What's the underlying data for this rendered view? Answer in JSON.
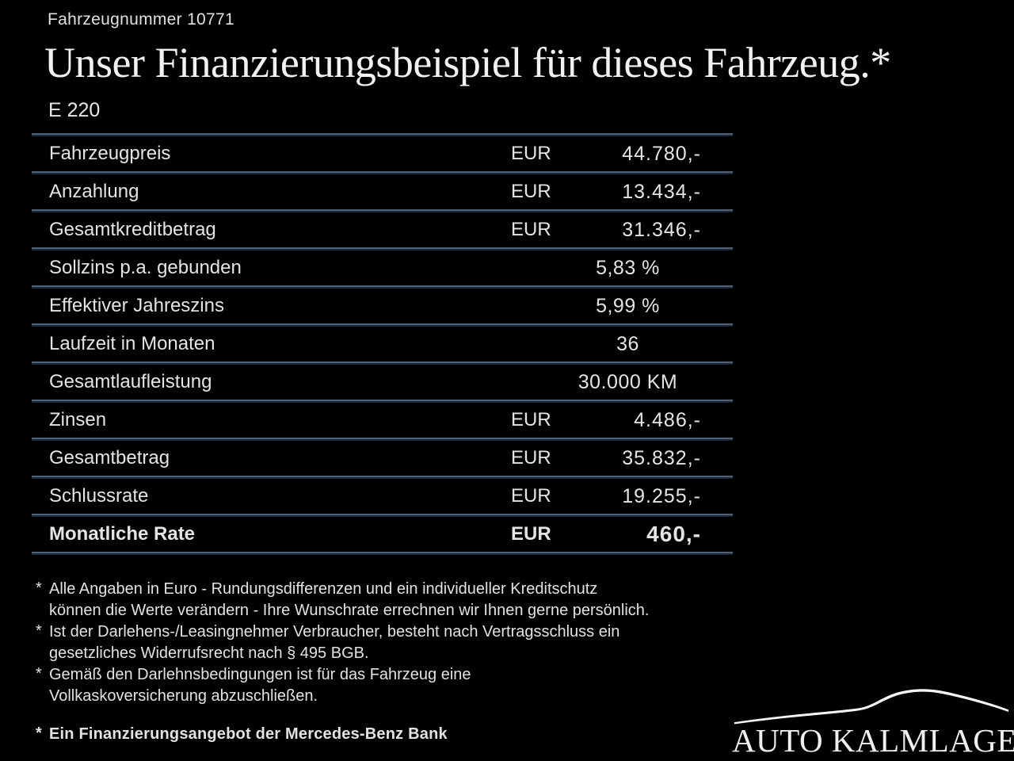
{
  "header": {
    "vehicle_number": "Fahrzeugnummer 10771",
    "title": "Unser Finanzierungsbeispiel für dieses Fahrzeug.*",
    "model": "E 220"
  },
  "table": {
    "rows": [
      {
        "label": "Fahrzeugpreis",
        "currency": "EUR",
        "value": "44.780,-",
        "bold": false
      },
      {
        "label": "Anzahlung",
        "currency": "EUR",
        "value": "13.434,-",
        "bold": false
      },
      {
        "label": "Gesamtkreditbetrag",
        "currency": "EUR",
        "value": "31.346,-",
        "bold": false
      },
      {
        "label": "Sollzins p.a. gebunden",
        "currency": "",
        "value": "5,83 %",
        "bold": false
      },
      {
        "label": "Effektiver Jahreszins",
        "currency": "",
        "value": "5,99 %",
        "bold": false
      },
      {
        "label": "Laufzeit in Monaten",
        "currency": "",
        "value": "36",
        "bold": false
      },
      {
        "label": "Gesamtlaufleistung",
        "currency": "",
        "value": "30.000 KM",
        "bold": false
      },
      {
        "label": "Zinsen",
        "currency": "EUR",
        "value": "4.486,-",
        "bold": false
      },
      {
        "label": "Gesamtbetrag",
        "currency": "EUR",
        "value": "35.832,-",
        "bold": false
      },
      {
        "label": "Schlussrate",
        "currency": "EUR",
        "value": "19.255,-",
        "bold": false
      },
      {
        "label": "Monatliche Rate",
        "currency": "EUR",
        "value": "460,-",
        "bold": true
      }
    ]
  },
  "footnotes": {
    "items": [
      {
        "marker": "*",
        "lines": [
          "Alle Angaben in Euro - Rundungsdifferenzen und ein individueller Kreditschutz",
          "können die Werte verändern - Ihre Wunschrate errechnen wir Ihnen gerne persönlich."
        ],
        "bold": false
      },
      {
        "marker": "*",
        "lines": [
          "Ist der Darlehens-/Leasingnehmer Verbraucher, besteht nach Vertragsschluss ein",
          "gesetzliches Widerrufsrecht nach § 495 BGB."
        ],
        "bold": false
      },
      {
        "marker": "*",
        "lines": [
          "Gemäß den Darlehnsbedingungen ist für das Fahrzeug eine",
          "Vollkaskoversicherung abzuschließen."
        ],
        "bold": false
      },
      {
        "marker": "*",
        "lines": [
          "Ein Finanzierungsangebot der Mercedes-Benz Bank"
        ],
        "bold": true
      }
    ]
  },
  "footer": {
    "dealer_name": "AUTO KALMLAGE"
  },
  "colors": {
    "background": "#000000",
    "text": "#e8e8e8",
    "divider_light": "#52647b",
    "divider_dark": "#172740"
  }
}
